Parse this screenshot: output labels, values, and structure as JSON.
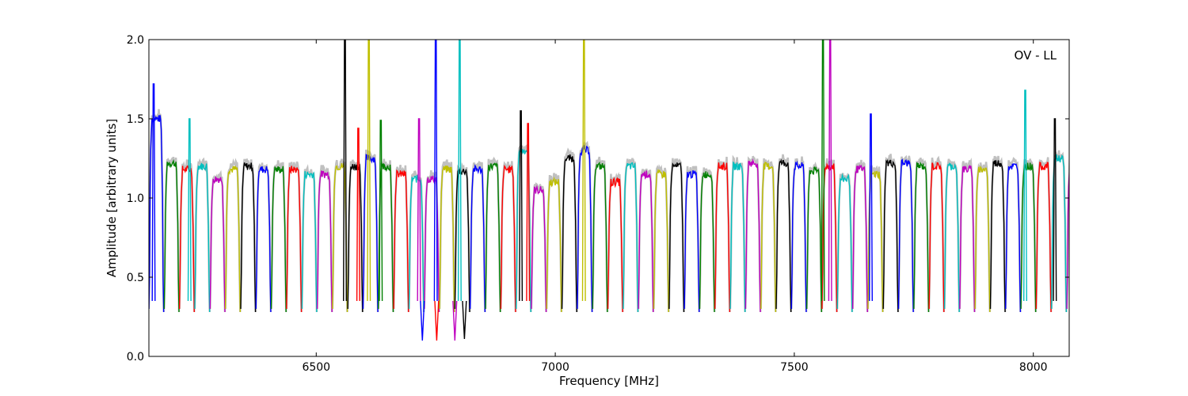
{
  "chart_data": {
    "type": "line",
    "xlabel": "Frequency [MHz]",
    "ylabel": "Amplitude [arbitrary units]",
    "annotation": "OV - LL",
    "xlim": [
      6150,
      8075
    ],
    "ylim": [
      0.0,
      2.0
    ],
    "x_ticks": [
      6500,
      7000,
      7500,
      8000
    ],
    "x_tick_labels": [
      "6500",
      "7000",
      "7500",
      "8000"
    ],
    "y_ticks": [
      0.0,
      0.5,
      1.0,
      1.5,
      2.0
    ],
    "y_tick_labels": [
      "0.0",
      "0.5",
      "1.0",
      "1.5",
      "2.0"
    ],
    "grid": false,
    "background_series_color": "#c0c0c0",
    "color_cycle": [
      "#0000ff",
      "#008000",
      "#ff0000",
      "#00bfbf",
      "#bf00bf",
      "#bfbf00",
      "#000000"
    ],
    "channel_width_mhz": 32,
    "channel_start_mhz": 6150,
    "channel_levels": [
      1.5,
      1.22,
      1.18,
      1.2,
      1.12,
      1.18,
      1.2,
      1.18,
      1.18,
      1.18,
      1.15,
      1.15,
      1.2,
      1.2,
      1.25,
      1.2,
      1.15,
      1.12,
      1.12,
      1.18,
      1.17,
      1.18,
      1.2,
      1.18,
      1.3,
      1.05,
      1.1,
      1.25,
      1.3,
      1.2,
      1.1,
      1.2,
      1.15,
      1.15,
      1.2,
      1.15,
      1.15,
      1.2,
      1.2,
      1.22,
      1.2,
      1.22,
      1.2,
      1.17,
      1.2,
      1.12,
      1.18,
      1.15,
      1.22,
      1.22,
      1.2,
      1.2,
      1.2,
      1.18,
      1.18,
      1.22,
      1.2,
      1.2,
      1.2,
      1.25,
      1.22
    ],
    "spikes": [
      {
        "x": 6160,
        "y": 1.72
      },
      {
        "x": 6235,
        "y": 1.5
      },
      {
        "x": 6560,
        "y": 2.0
      },
      {
        "x": 6588,
        "y": 1.44
      },
      {
        "x": 6610,
        "y": 2.0
      },
      {
        "x": 6635,
        "y": 1.49
      },
      {
        "x": 6715,
        "y": 1.5
      },
      {
        "x": 6750,
        "y": 2.0
      },
      {
        "x": 6800,
        "y": 2.0
      },
      {
        "x": 6928,
        "y": 1.55
      },
      {
        "x": 6943,
        "y": 1.47
      },
      {
        "x": 7060,
        "y": 2.0
      },
      {
        "x": 7560,
        "y": 2.0
      },
      {
        "x": 7575,
        "y": 2.0
      },
      {
        "x": 7660,
        "y": 1.53
      },
      {
        "x": 7983,
        "y": 1.68
      },
      {
        "x": 8045,
        "y": 1.5
      }
    ],
    "dips": [
      {
        "x": 6722,
        "y": 0.1
      },
      {
        "x": 6752,
        "y": 0.1
      },
      {
        "x": 6790,
        "y": 0.1
      },
      {
        "x": 6810,
        "y": 0.11
      }
    ]
  }
}
